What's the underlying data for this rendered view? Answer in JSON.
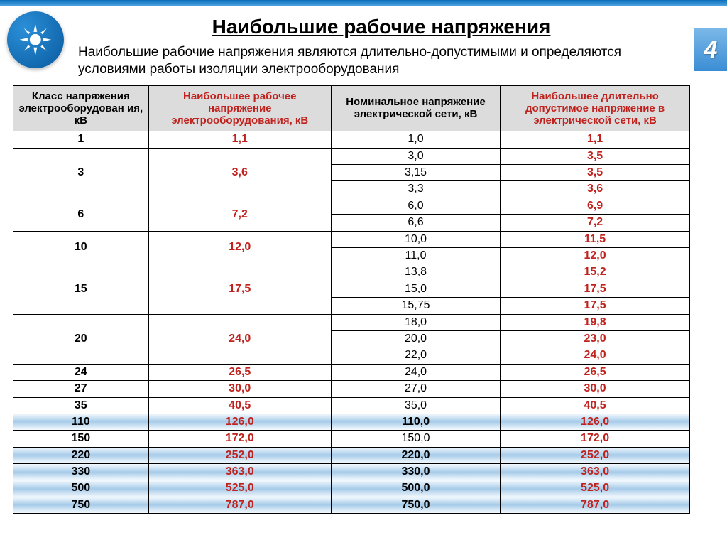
{
  "page_number": "4",
  "title": "Наибольшие рабочие напряжения",
  "subtitle": "Наибольшие рабочие напряжения являются длительно-допустимыми и определяются условиями работы изоляции электрооборудования",
  "headers": {
    "c1": "Класс напряжения электрооборудован ия, кВ",
    "c2": "Наибольшее рабочее напряжение электрооборудования, кВ",
    "c3": "Номинальное напряжение электрической сети, кВ",
    "c4": "Наибольшее длительно допустимое напряжение в электрической сети, кВ"
  },
  "rows": [
    {
      "cls": "1",
      "max": "1,1",
      "nom": "1,0",
      "allow": "1,1",
      "span": 1,
      "grad": false
    },
    {
      "cls": "3",
      "max": "3,6",
      "nom": "3,0",
      "allow": "3,5",
      "span": 3,
      "grad": false
    },
    {
      "nom": "3,15",
      "allow": "3,5"
    },
    {
      "nom": "3,3",
      "allow": "3,6"
    },
    {
      "cls": "6",
      "max": "7,2",
      "nom": "6,0",
      "allow": "6,9",
      "span": 2,
      "grad": false
    },
    {
      "nom": "6,6",
      "allow": "7,2"
    },
    {
      "cls": "10",
      "max": "12,0",
      "nom": "10,0",
      "allow": "11,5",
      "span": 2,
      "grad": false
    },
    {
      "nom": "11,0",
      "allow": "12,0"
    },
    {
      "cls": "15",
      "max": "17,5",
      "nom": "13,8",
      "allow": "15,2",
      "span": 3,
      "grad": false
    },
    {
      "nom": "15,0",
      "allow": "17,5"
    },
    {
      "nom": "15,75",
      "allow": "17,5"
    },
    {
      "cls": "20",
      "max": "24,0",
      "nom": "18,0",
      "allow": "19,8",
      "span": 3,
      "grad": false
    },
    {
      "nom": "20,0",
      "allow": "23,0"
    },
    {
      "nom": "22,0",
      "allow": "24,0"
    },
    {
      "cls": "24",
      "max": "26,5",
      "nom": "24,0",
      "allow": "26,5",
      "span": 1,
      "grad": false
    },
    {
      "cls": "27",
      "max": "30,0",
      "nom": "27,0",
      "allow": "30,0",
      "span": 1,
      "grad": false
    },
    {
      "cls": "35",
      "max": "40,5",
      "nom": "35,0",
      "allow": "40,5",
      "span": 1,
      "grad": false
    },
    {
      "cls": "110",
      "max": "126,0",
      "nom": "110,0",
      "allow": "126,0",
      "span": 1,
      "grad": true
    },
    {
      "cls": "150",
      "max": "172,0",
      "nom": "150,0",
      "allow": "172,0",
      "span": 1,
      "grad": false
    },
    {
      "cls": "220",
      "max": "252,0",
      "nom": "220,0",
      "allow": "252,0",
      "span": 1,
      "grad": true
    },
    {
      "cls": "330",
      "max": "363,0",
      "nom": "330,0",
      "allow": "363,0",
      "span": 1,
      "grad": true
    },
    {
      "cls": "500",
      "max": "525,0",
      "nom": "500,0",
      "allow": "525,0",
      "span": 1,
      "grad": true
    },
    {
      "cls": "750",
      "max": "787,0",
      "nom": "750,0",
      "allow": "787,0",
      "span": 1,
      "grad": true
    }
  ],
  "colors": {
    "header_bg": "#dcdcdc",
    "red": "#c0221e",
    "gradient_top": "#f2f8fd",
    "gradient_mid": "#a6cbe9",
    "accent_top": "#0a6eb8"
  }
}
